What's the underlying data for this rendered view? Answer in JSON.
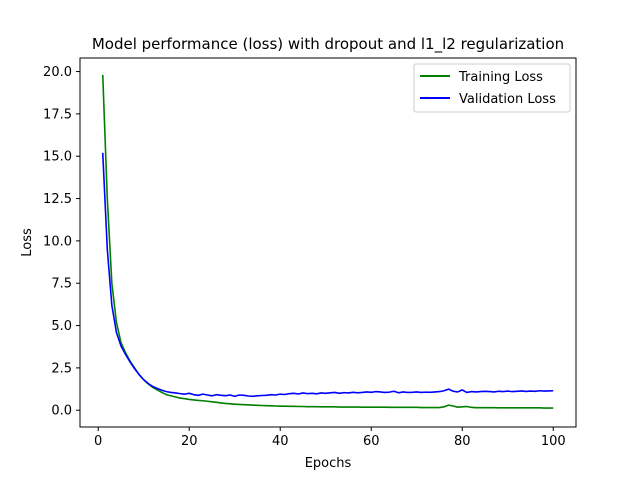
{
  "chart_data": {
    "type": "line",
    "title": "Model performance (loss) with dropout and l1_l2 regularization",
    "xlabel": "Epochs",
    "ylabel": "Loss",
    "xlim": [
      -4,
      105
    ],
    "ylim": [
      -0.99,
      20.8
    ],
    "xticks": [
      0,
      20,
      40,
      60,
      80,
      100
    ],
    "xtick_labels": [
      "0",
      "20",
      "40",
      "60",
      "80",
      "100"
    ],
    "yticks": [
      0,
      2.5,
      5,
      7.5,
      10,
      12.5,
      15,
      17.5,
      20
    ],
    "ytick_labels": [
      "0.0",
      "2.5",
      "5.0",
      "7.5",
      "10.0",
      "12.5",
      "15.0",
      "17.5",
      "20.0"
    ],
    "grid": false,
    "legend_position": "top-right",
    "series": [
      {
        "name": "Training Loss",
        "color": "#008000",
        "x": [
          1,
          2,
          3,
          4,
          5,
          6,
          7,
          8,
          9,
          10,
          11,
          12,
          13,
          14,
          15,
          16,
          17,
          18,
          19,
          20,
          21,
          22,
          23,
          24,
          25,
          26,
          27,
          28,
          29,
          30,
          31,
          32,
          33,
          34,
          35,
          36,
          37,
          38,
          39,
          40,
          41,
          42,
          43,
          44,
          45,
          46,
          47,
          48,
          49,
          50,
          51,
          52,
          53,
          54,
          55,
          56,
          57,
          58,
          59,
          60,
          61,
          62,
          63,
          64,
          65,
          66,
          67,
          68,
          69,
          70,
          71,
          72,
          73,
          74,
          75,
          76,
          77,
          78,
          79,
          80,
          81,
          82,
          83,
          84,
          85,
          86,
          87,
          88,
          89,
          90,
          91,
          92,
          93,
          94,
          95,
          96,
          97,
          98,
          99,
          100
        ],
        "values": [
          19.8,
          12.5,
          7.5,
          5.2,
          4.0,
          3.4,
          2.9,
          2.5,
          2.1,
          1.8,
          1.55,
          1.35,
          1.2,
          1.05,
          0.92,
          0.85,
          0.78,
          0.72,
          0.68,
          0.64,
          0.61,
          0.58,
          0.56,
          0.53,
          0.5,
          0.47,
          0.43,
          0.4,
          0.38,
          0.36,
          0.34,
          0.33,
          0.32,
          0.3,
          0.29,
          0.28,
          0.27,
          0.26,
          0.25,
          0.24,
          0.24,
          0.23,
          0.23,
          0.22,
          0.22,
          0.21,
          0.21,
          0.21,
          0.2,
          0.2,
          0.2,
          0.2,
          0.19,
          0.19,
          0.19,
          0.19,
          0.19,
          0.18,
          0.18,
          0.18,
          0.18,
          0.18,
          0.18,
          0.17,
          0.17,
          0.17,
          0.17,
          0.17,
          0.17,
          0.17,
          0.16,
          0.16,
          0.16,
          0.16,
          0.16,
          0.2,
          0.3,
          0.25,
          0.18,
          0.2,
          0.22,
          0.17,
          0.15,
          0.15,
          0.15,
          0.15,
          0.15,
          0.14,
          0.14,
          0.14,
          0.14,
          0.14,
          0.14,
          0.14,
          0.14,
          0.14,
          0.14,
          0.13,
          0.13,
          0.13
        ]
      },
      {
        "name": "Validation Loss",
        "color": "#0000ff",
        "x": [
          1,
          2,
          3,
          4,
          5,
          6,
          7,
          8,
          9,
          10,
          11,
          12,
          13,
          14,
          15,
          16,
          17,
          18,
          19,
          20,
          21,
          22,
          23,
          24,
          25,
          26,
          27,
          28,
          29,
          30,
          31,
          32,
          33,
          34,
          35,
          36,
          37,
          38,
          39,
          40,
          41,
          42,
          43,
          44,
          45,
          46,
          47,
          48,
          49,
          50,
          51,
          52,
          53,
          54,
          55,
          56,
          57,
          58,
          59,
          60,
          61,
          62,
          63,
          64,
          65,
          66,
          67,
          68,
          69,
          70,
          71,
          72,
          73,
          74,
          75,
          76,
          77,
          78,
          79,
          80,
          81,
          82,
          83,
          84,
          85,
          86,
          87,
          88,
          89,
          90,
          91,
          92,
          93,
          94,
          95,
          96,
          97,
          98,
          99,
          100
        ],
        "values": [
          15.2,
          9.5,
          6.2,
          4.6,
          3.8,
          3.3,
          2.85,
          2.45,
          2.1,
          1.8,
          1.58,
          1.4,
          1.28,
          1.18,
          1.1,
          1.05,
          1.02,
          0.98,
          0.95,
          1.0,
          0.92,
          0.88,
          0.95,
          0.9,
          0.85,
          0.92,
          0.88,
          0.86,
          0.9,
          0.82,
          0.9,
          0.88,
          0.84,
          0.82,
          0.85,
          0.87,
          0.88,
          0.92,
          0.9,
          0.95,
          0.93,
          0.98,
          1.0,
          0.96,
          1.02,
          0.98,
          1.0,
          0.97,
          1.02,
          1.0,
          1.03,
          1.05,
          1.0,
          1.04,
          1.02,
          1.06,
          1.03,
          1.05,
          1.08,
          1.06,
          1.1,
          1.08,
          1.05,
          1.07,
          1.12,
          1.03,
          1.08,
          1.05,
          1.06,
          1.08,
          1.05,
          1.07,
          1.06,
          1.08,
          1.1,
          1.15,
          1.25,
          1.12,
          1.08,
          1.2,
          1.05,
          1.1,
          1.08,
          1.1,
          1.12,
          1.1,
          1.08,
          1.12,
          1.1,
          1.13,
          1.1,
          1.12,
          1.14,
          1.11,
          1.13,
          1.12,
          1.15,
          1.13,
          1.14,
          1.15
        ]
      }
    ]
  }
}
